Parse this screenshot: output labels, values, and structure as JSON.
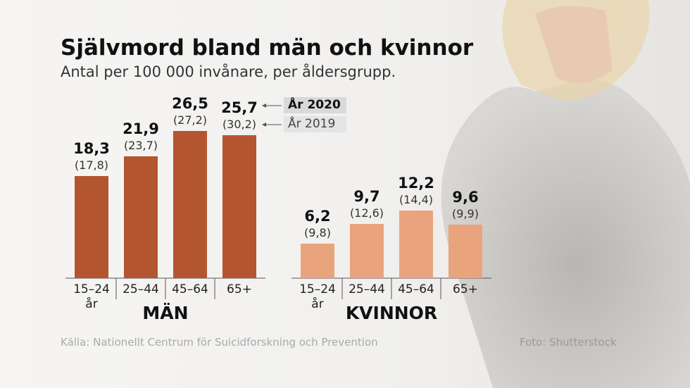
{
  "title": "Självmord bland män och kvinnor",
  "subtitle": "Antal per 100 000 invånare, per åldersgrupp.",
  "source": "Källa: Nationellt Centrum för Suicidforskning och Prevention",
  "photo_credit": "Foto: Shutterstock",
  "chart_data": [
    {
      "type": "bar",
      "title": "MÄN",
      "categories": [
        "15–24 år",
        "25–44",
        "45–64",
        "65+"
      ],
      "series": [
        {
          "name": "År 2020",
          "color": "#b3562f",
          "values": [
            18.3,
            21.9,
            26.5,
            25.7
          ],
          "value_labels": [
            "18,3",
            "21,9",
            "26,5",
            "25,7"
          ]
        },
        {
          "name": "År 2019",
          "values": [
            17.8,
            23.7,
            27.2,
            30.2
          ],
          "value_labels": [
            "(17,8)",
            "(23,7)",
            "(27,2)",
            "(30,2)"
          ]
        }
      ]
    },
    {
      "type": "bar",
      "title": "KVINNOR",
      "categories": [
        "15–24 år",
        "25–44",
        "45–64",
        "65+"
      ],
      "series": [
        {
          "color": "#e9a47e",
          "values": [
            6.2,
            9.7,
            12.2,
            9.6
          ],
          "value_labels": [
            "6,2",
            "9,7",
            "12,2",
            "9,6"
          ]
        },
        {
          "values": [
            9.8,
            12.6,
            14.4,
            9.9
          ],
          "value_labels": [
            "(9,8)",
            "(12,6)",
            "(14,4)",
            "(9,9)"
          ]
        }
      ]
    }
  ]
}
